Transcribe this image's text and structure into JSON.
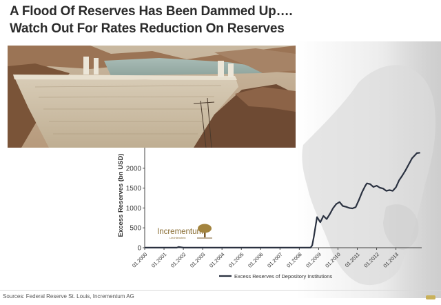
{
  "title": {
    "line1": "A Flood Of Reserves Has Been Dammed Up….",
    "line2": "Watch Out For Rates Reduction On Reserves"
  },
  "logo": {
    "name": "Incrementum",
    "sub": "Liechtenstein"
  },
  "source": "Sources: Federal Reserve St. Louis, Incrementum AG",
  "colors": {
    "series": "#2a3140",
    "title": "#2b2b2b",
    "logo": "#9a7b3a"
  },
  "chart_data": {
    "type": "line",
    "ylabel": "Excess Reserves (bn USD)",
    "xlabel": "",
    "ylim": [
      0,
      2500
    ],
    "yticks": [
      0,
      500,
      1000,
      1500,
      2000
    ],
    "xlim": [
      "2000-01",
      "2014-05"
    ],
    "xticks": [
      "01.2000",
      "01.2001",
      "01.2002",
      "01.2003",
      "01.2004",
      "01.2005",
      "01.2006",
      "01.2007",
      "01.2008",
      "01.2009",
      "01.2010",
      "01.2011",
      "01.2012",
      "01.2013"
    ],
    "grid": false,
    "legend_position": "bottom",
    "series": [
      {
        "name": "Excess Reserves of Depository Institutions",
        "x": [
          "2000-01",
          "2001-09",
          "2001-10",
          "2002-01",
          "2005-01",
          "2008-01",
          "2008-08",
          "2008-09",
          "2008-10",
          "2008-12",
          "2009-02",
          "2009-04",
          "2009-06",
          "2009-08",
          "2009-10",
          "2009-12",
          "2010-02",
          "2010-04",
          "2010-06",
          "2010-08",
          "2010-10",
          "2010-12",
          "2011-02",
          "2011-04",
          "2011-06",
          "2011-07",
          "2011-09",
          "2011-11",
          "2012-01",
          "2012-03",
          "2012-05",
          "2012-07",
          "2012-09",
          "2012-11",
          "2013-01",
          "2013-03",
          "2013-05",
          "2013-07",
          "2013-09",
          "2013-11",
          "2014-02",
          "2014-04"
        ],
        "values": [
          1,
          1,
          19,
          1,
          2,
          2,
          2,
          60,
          270,
          770,
          640,
          800,
          720,
          850,
          1000,
          1100,
          1150,
          1050,
          1030,
          1000,
          990,
          1020,
          1200,
          1400,
          1560,
          1620,
          1600,
          1530,
          1560,
          1510,
          1490,
          1430,
          1450,
          1430,
          1520,
          1700,
          1820,
          1950,
          2100,
          2250,
          2380,
          2390
        ]
      }
    ]
  }
}
